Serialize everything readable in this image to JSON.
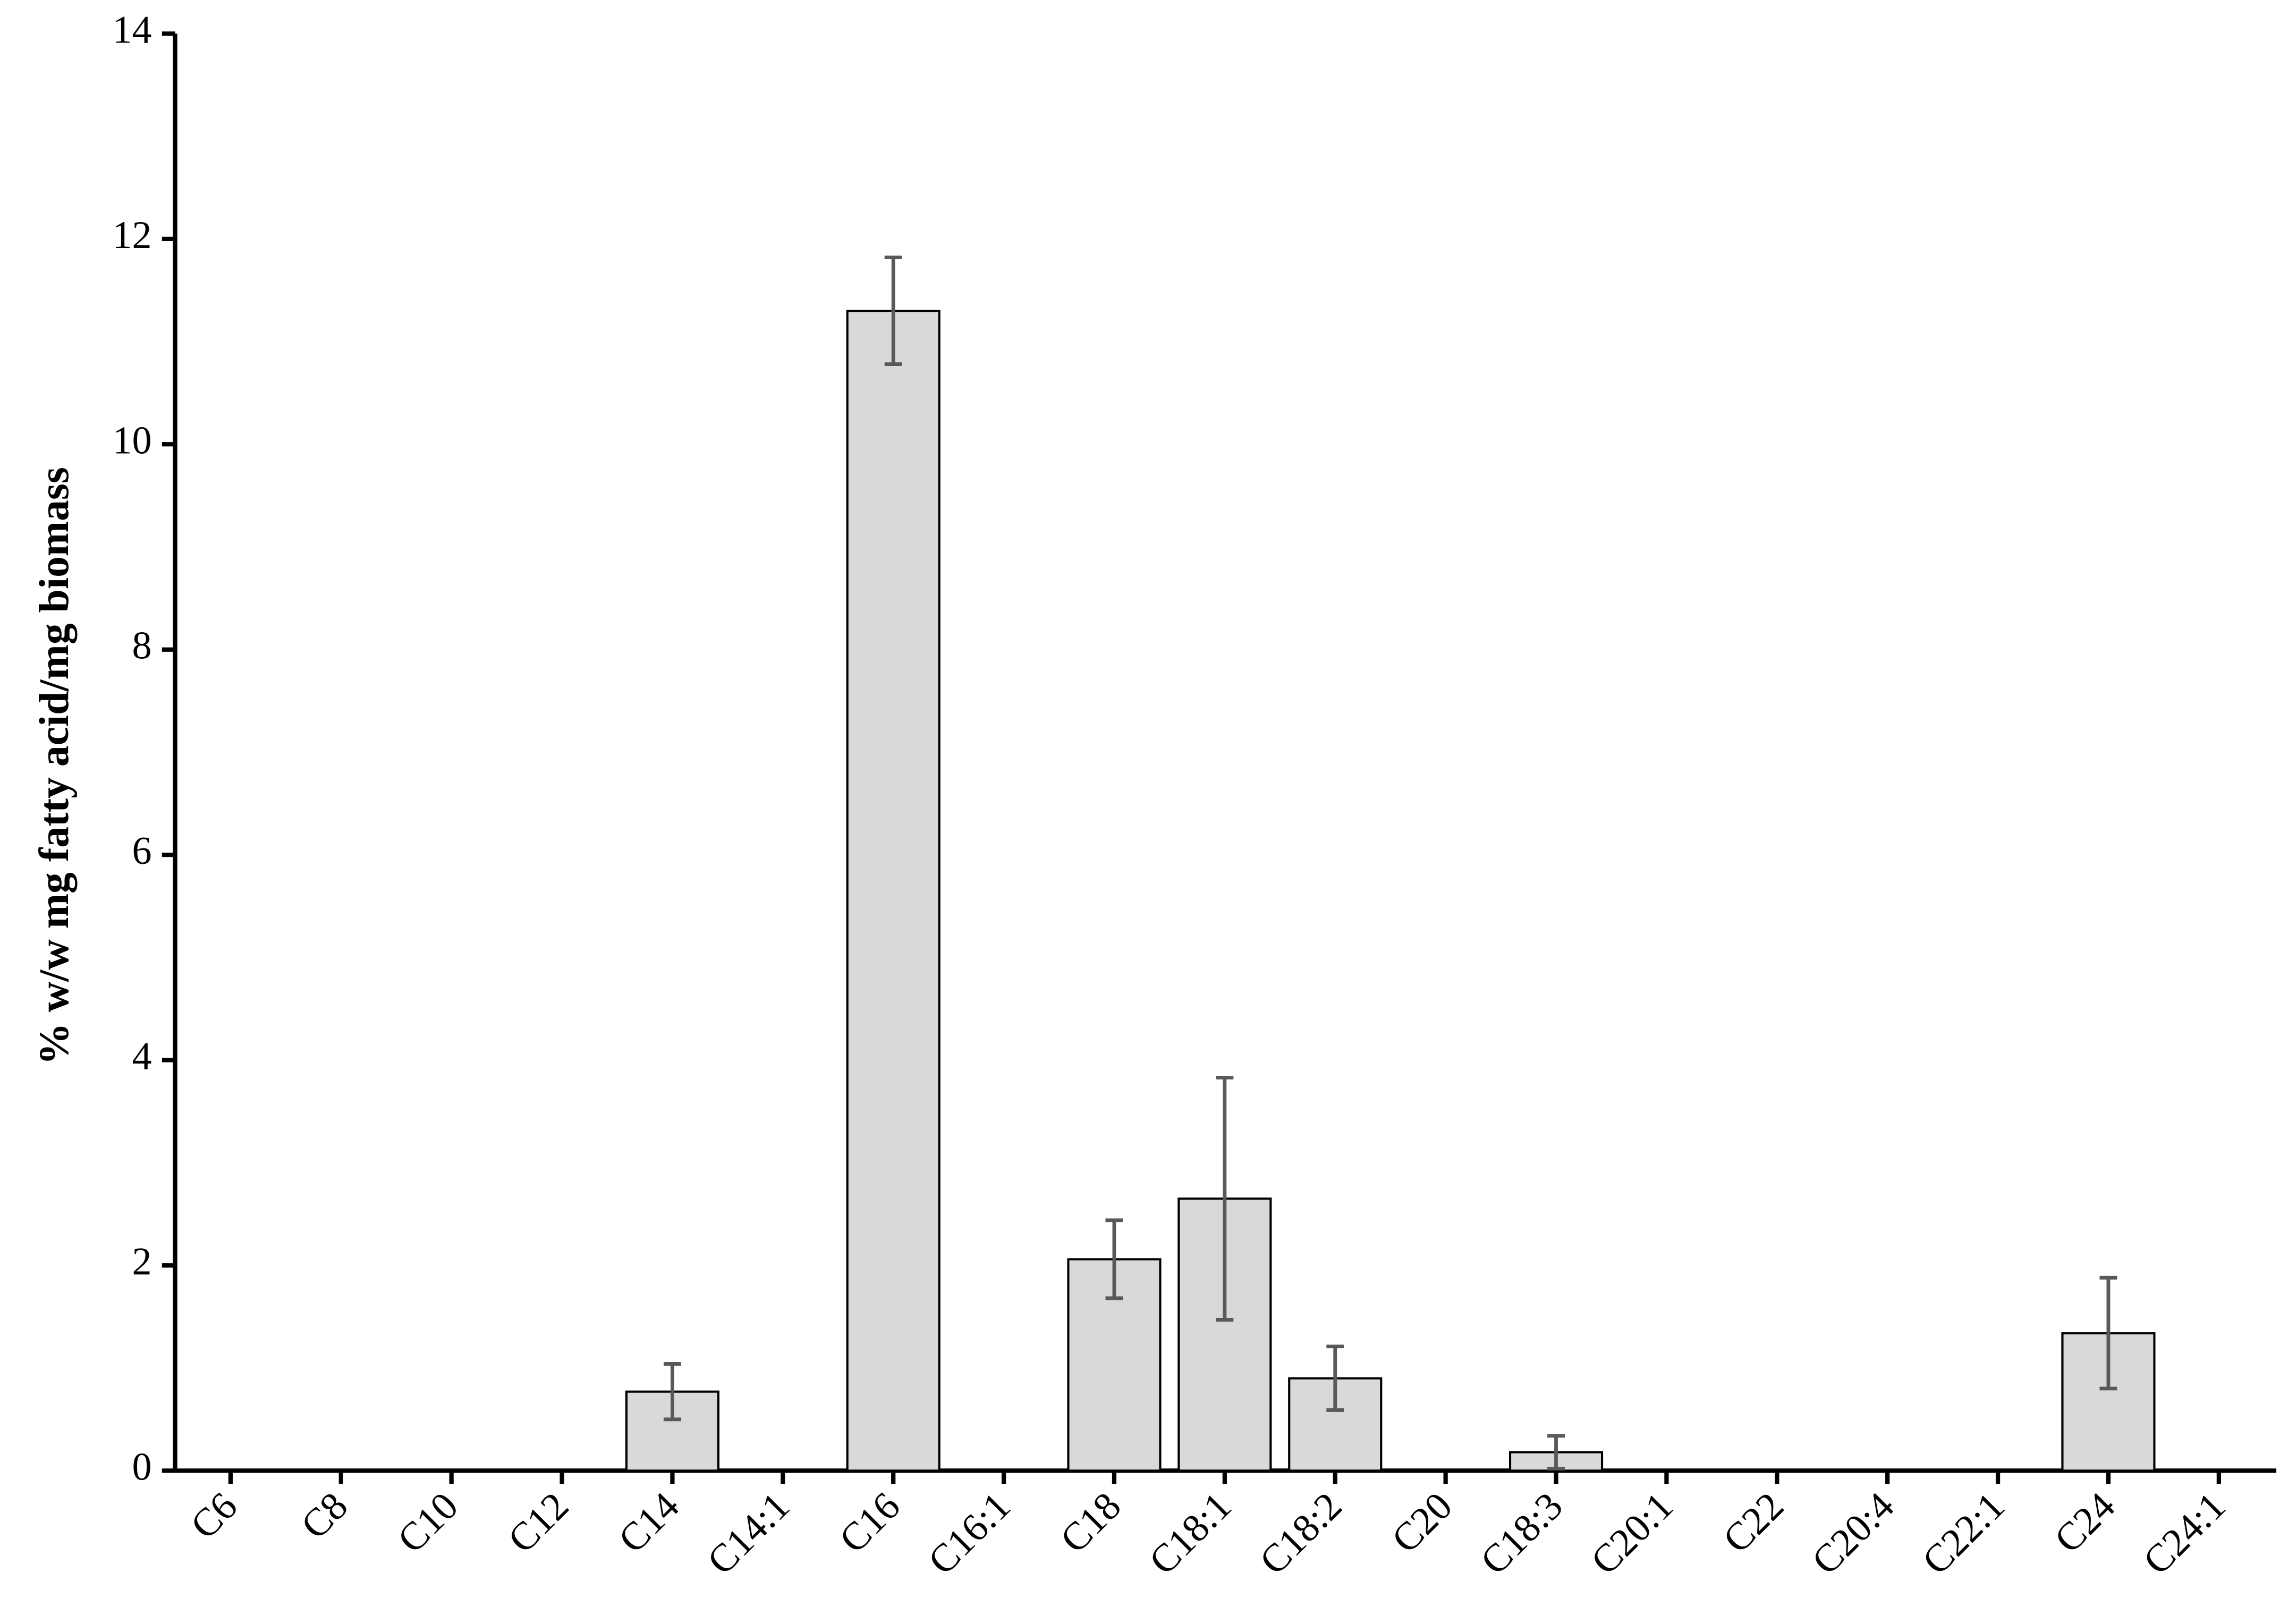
{
  "chart_data": {
    "type": "bar",
    "y_label": "% w/w mg fatty acid/mg biomass",
    "categories": [
      "C6",
      "C8",
      "C10",
      "C12",
      "C14",
      "C14:1",
      "C16",
      "C16:1",
      "C18",
      "C18:1",
      "C18:2",
      "C20",
      "C18:3",
      "C20:1",
      "C22",
      "C20:4",
      "C22:1",
      "C24",
      "C24:1"
    ],
    "values": [
      0,
      0,
      0,
      0,
      0.77,
      0,
      11.3,
      0,
      2.06,
      2.65,
      0.9,
      0,
      0.18,
      0,
      0,
      0,
      0,
      1.34,
      0
    ],
    "errors": [
      null,
      null,
      null,
      null,
      0.27,
      null,
      0.52,
      null,
      0.38,
      1.18,
      0.31,
      null,
      0.16,
      null,
      null,
      null,
      null,
      0.54,
      null
    ],
    "color": "#d9d9d9",
    "error_color": "#595959",
    "ylim": [
      0,
      14
    ],
    "yticks": [
      0,
      2,
      4,
      6,
      8,
      10,
      12,
      14
    ],
    "grid": false
  }
}
